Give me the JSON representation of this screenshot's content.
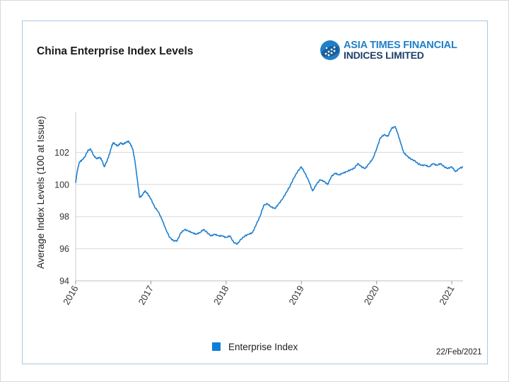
{
  "chart_data": {
    "type": "line",
    "title": "China Enterprise Index Levels",
    "ylabel": "Average Index Levels (100 at Issue)",
    "xlabel": "",
    "ylim": [
      94,
      104
    ],
    "xlim": [
      2016.0,
      2021.15
    ],
    "y_ticks": [
      94,
      96,
      98,
      100,
      102
    ],
    "x_ticks": [
      {
        "label": "2016",
        "value": 2016.0
      },
      {
        "label": "2017",
        "value": 2017.0
      },
      {
        "label": "2018",
        "value": 2018.0
      },
      {
        "label": "2019",
        "value": 2019.0
      },
      {
        "label": "2020",
        "value": 2020.0
      },
      {
        "label": "2021",
        "value": 2021.0
      }
    ],
    "grid": "horizontal",
    "legend_position": "bottom",
    "series": [
      {
        "name": "Enterprise Index",
        "color": "#1f7fd0",
        "x": [
          2016.0,
          2016.02,
          2016.05,
          2016.08,
          2016.12,
          2016.16,
          2016.2,
          2016.24,
          2016.28,
          2016.32,
          2016.35,
          2016.38,
          2016.42,
          2016.45,
          2016.48,
          2016.5,
          2016.53,
          2016.56,
          2016.6,
          2016.63,
          2016.66,
          2016.7,
          2016.73,
          2016.76,
          2016.79,
          2016.82,
          2016.85,
          2016.88,
          2016.92,
          2016.96,
          2017.0,
          2017.05,
          2017.1,
          2017.15,
          2017.2,
          2017.25,
          2017.3,
          2017.35,
          2017.4,
          2017.45,
          2017.5,
          2017.55,
          2017.6,
          2017.65,
          2017.7,
          2017.75,
          2017.8,
          2017.85,
          2017.9,
          2017.95,
          2018.0,
          2018.05,
          2018.1,
          2018.15,
          2018.2,
          2018.25,
          2018.3,
          2018.35,
          2018.4,
          2018.45,
          2018.5,
          2018.55,
          2018.6,
          2018.65,
          2018.7,
          2018.75,
          2018.8,
          2018.85,
          2018.9,
          2018.95,
          2019.0,
          2019.05,
          2019.1,
          2019.15,
          2019.2,
          2019.25,
          2019.3,
          2019.35,
          2019.4,
          2019.45,
          2019.5,
          2019.55,
          2019.6,
          2019.65,
          2019.7,
          2019.75,
          2019.8,
          2019.85,
          2019.9,
          2019.95,
          2020.0,
          2020.05,
          2020.1,
          2020.15,
          2020.2,
          2020.25,
          2020.28,
          2020.32,
          2020.36,
          2020.4,
          2020.45,
          2020.5,
          2020.55,
          2020.6,
          2020.65,
          2020.7,
          2020.75,
          2020.8,
          2020.85,
          2020.9,
          2020.95,
          2021.0,
          2021.05,
          2021.1,
          2021.15
        ],
        "values": [
          100.1,
          100.8,
          101.4,
          101.5,
          101.7,
          102.1,
          102.2,
          101.8,
          101.6,
          101.7,
          101.5,
          101.1,
          101.5,
          101.9,
          102.4,
          102.6,
          102.5,
          102.4,
          102.6,
          102.5,
          102.6,
          102.7,
          102.5,
          102.2,
          101.4,
          100.3,
          99.2,
          99.3,
          99.6,
          99.4,
          99.1,
          98.6,
          98.3,
          97.8,
          97.2,
          96.7,
          96.5,
          96.5,
          97.0,
          97.2,
          97.1,
          97.0,
          96.9,
          97.0,
          97.2,
          97.0,
          96.8,
          96.9,
          96.8,
          96.8,
          96.7,
          96.8,
          96.4,
          96.3,
          96.6,
          96.8,
          96.9,
          97.0,
          97.5,
          98.0,
          98.7,
          98.8,
          98.6,
          98.5,
          98.8,
          99.1,
          99.5,
          99.9,
          100.4,
          100.8,
          101.1,
          100.7,
          100.2,
          99.6,
          100.0,
          100.3,
          100.2,
          100.0,
          100.5,
          100.7,
          100.6,
          100.7,
          100.8,
          100.9,
          101.0,
          101.3,
          101.1,
          101.0,
          101.3,
          101.6,
          102.2,
          102.9,
          103.1,
          103.0,
          103.5,
          103.6,
          103.2,
          102.6,
          102.0,
          101.8,
          101.6,
          101.5,
          101.3,
          101.2,
          101.2,
          101.1,
          101.3,
          101.2,
          101.3,
          101.1,
          101.0,
          101.1,
          100.8,
          101.0,
          101.1
        ]
      }
    ]
  },
  "logo": {
    "line1": "ASIA TIMES FINANCIAL",
    "line2": "INDICES LIMITED",
    "color_primary": "#1f7fc9",
    "color_secondary": "#1d3f6b"
  },
  "legend": {
    "label": "Enterprise Index",
    "color": "#0f7fd8"
  },
  "footer": {
    "date": "22/Feb/2021"
  }
}
